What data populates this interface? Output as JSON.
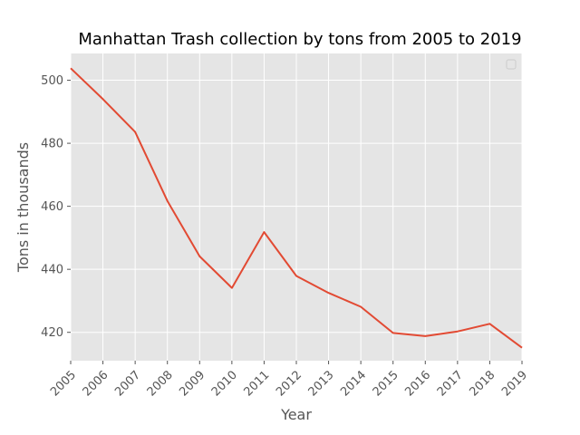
{
  "chart_data": {
    "type": "line",
    "title": "Manhattan Trash collection by tons from 2005 to 2019",
    "xlabel": "Year",
    "ylabel": "Tons in thousands",
    "x": [
      2005,
      2006,
      2007,
      2008,
      2009,
      2010,
      2011,
      2012,
      2013,
      2014,
      2015,
      2016,
      2017,
      2018,
      2019
    ],
    "series": [
      {
        "values": [
          503.8,
          494.0,
          483.6,
          461.7,
          444.1,
          434.1,
          451.8,
          437.9,
          432.5,
          428.1,
          419.8,
          418.8,
          420.3,
          422.7,
          415.1
        ]
      }
    ],
    "yticks": [
      420,
      440,
      460,
      480,
      500
    ],
    "xlim": [
      2005,
      2019
    ],
    "ylim": [
      411,
      508.5
    ],
    "grid": true,
    "legend": "top-right (empty)",
    "colors": {
      "line": "#E24A33",
      "background": "#E5E5E5",
      "grid": "#FFFFFF"
    }
  }
}
